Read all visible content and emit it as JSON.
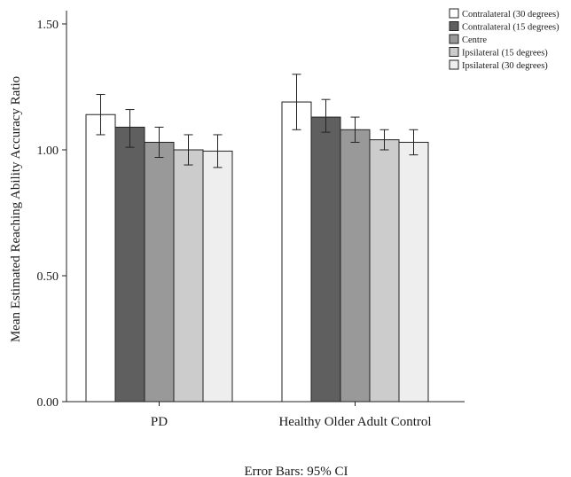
{
  "chart_data": {
    "type": "bar",
    "ylabel": "Mean Estimated Reaching Ability Accuracy Ratio",
    "xlabel": "",
    "ylim": [
      0,
      1.5
    ],
    "yticks": [
      "0.00",
      "0.50",
      "1.00",
      "1.50"
    ],
    "categories": [
      "PD",
      "Healthy Older Adult Control"
    ],
    "series": [
      {
        "name": "Contralateral (30 degrees)",
        "color": "#ffffff",
        "values": [
          1.14,
          1.19
        ],
        "ci_low": [
          1.06,
          1.08
        ],
        "ci_high": [
          1.22,
          1.3
        ]
      },
      {
        "name": "Contralateral (15 degrees)",
        "color": "#5f5f5f",
        "values": [
          1.09,
          1.13
        ],
        "ci_low": [
          1.01,
          1.07
        ],
        "ci_high": [
          1.16,
          1.2
        ]
      },
      {
        "name": "Centre",
        "color": "#999999",
        "values": [
          1.03,
          1.08
        ],
        "ci_low": [
          0.97,
          1.03
        ],
        "ci_high": [
          1.09,
          1.13
        ]
      },
      {
        "name": "Ipsilateral (15 degrees)",
        "color": "#cccccc",
        "values": [
          1.0,
          1.04
        ],
        "ci_low": [
          0.94,
          1.0
        ],
        "ci_high": [
          1.06,
          1.08
        ]
      },
      {
        "name": "Ipsilateral (30 degrees)",
        "color": "#eeeeee",
        "values": [
          0.995,
          1.03
        ],
        "ci_low": [
          0.93,
          0.98
        ],
        "ci_high": [
          1.06,
          1.08
        ]
      }
    ],
    "legend_position": "top-right",
    "grid": false,
    "footnote": "Error Bars: 95% CI"
  }
}
